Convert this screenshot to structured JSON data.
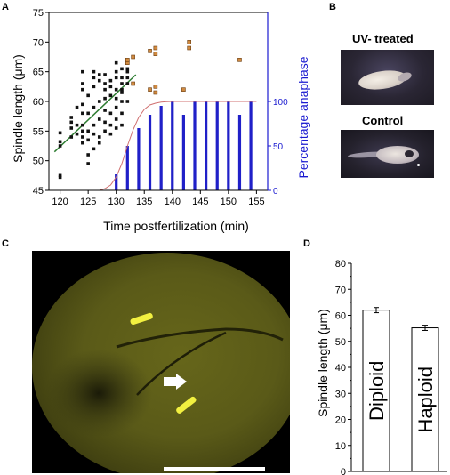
{
  "panels": {
    "a": "A",
    "b": "B",
    "c": "C",
    "d": "D"
  },
  "panel_b": {
    "uv_title": "UV- treated",
    "control_title": "Control"
  },
  "colors": {
    "spindle": "#111111",
    "late": "#d08a40",
    "bar": "#2020c8",
    "fit": "#2e7d32",
    "sigmoid": "#d07070",
    "right_axis": "#1a1ad0"
  },
  "chart_data": [
    {
      "type": "scatter",
      "xlabel": "Time postfertilization (min)",
      "ylabel": "Spindle length (μm)",
      "ylabel_right": "Percentage anaphase",
      "xlim": [
        118,
        157
      ],
      "ylim": [
        45,
        75
      ],
      "ylim_right": [
        0,
        200
      ],
      "xticks": [
        120,
        125,
        130,
        135,
        140,
        145,
        150,
        155
      ],
      "yticks": [
        45,
        50,
        55,
        60,
        65,
        70,
        75
      ],
      "yticks_right": [
        0,
        50,
        100
      ],
      "series": [
        {
          "marker": "square-black",
          "points": [
            [
              120,
              47.5
            ],
            [
              120,
              47.2
            ],
            [
              120,
              52.5
            ],
            [
              120,
              53.2
            ],
            [
              120,
              54.7
            ],
            [
              122,
              54.0
            ],
            [
              122,
              55.5
            ],
            [
              122,
              56.5
            ],
            [
              122,
              57.3
            ],
            [
              123,
              54.5
            ],
            [
              123,
              56.0
            ],
            [
              123,
              59.0
            ],
            [
              124,
              53.0
            ],
            [
              124,
              54.0
            ],
            [
              124,
              55.0
            ],
            [
              124,
              56.0
            ],
            [
              124,
              58.0
            ],
            [
              124,
              59.5
            ],
            [
              124,
              62.0
            ],
            [
              124,
              63.0
            ],
            [
              124,
              65.0
            ],
            [
              125,
              49.5
            ],
            [
              125,
              51.0
            ],
            [
              125,
              53.5
            ],
            [
              125,
              55.0
            ],
            [
              125,
              58.0
            ],
            [
              125,
              61.0
            ],
            [
              126,
              52.0
            ],
            [
              126,
              54.5
            ],
            [
              126,
              56.0
            ],
            [
              126,
              59.0
            ],
            [
              126,
              62.5
            ],
            [
              126,
              64.0
            ],
            [
              126,
              65.0
            ],
            [
              127,
              53.0
            ],
            [
              127,
              54.0
            ],
            [
              127,
              57.0
            ],
            [
              127,
              60.0
            ],
            [
              127,
              63.5
            ],
            [
              127,
              64.5
            ],
            [
              128,
              55.0
            ],
            [
              128,
              56.5
            ],
            [
              128,
              58.5
            ],
            [
              128,
              60.5
            ],
            [
              128,
              62.0
            ],
            [
              128,
              63.0
            ],
            [
              128,
              64.5
            ],
            [
              129,
              54.5
            ],
            [
              129,
              56.0
            ],
            [
              129,
              58.0
            ],
            [
              129,
              61.0
            ],
            [
              129,
              62.5
            ],
            [
              129,
              63.5
            ],
            [
              130,
              55.5
            ],
            [
              130,
              57.0
            ],
            [
              130,
              59.0
            ],
            [
              130,
              60.5
            ],
            [
              130,
              62.0
            ],
            [
              130,
              64.0
            ],
            [
              130,
              65.0
            ],
            [
              130,
              66.5
            ],
            [
              131,
              56.0
            ],
            [
              131,
              58.0
            ],
            [
              131,
              60.0
            ],
            [
              131,
              61.5
            ],
            [
              131,
              62.0
            ],
            [
              131,
              63.0
            ],
            [
              131,
              64.0
            ],
            [
              131,
              65.5
            ],
            [
              132,
              60.0
            ],
            [
              132,
              63.0
            ],
            [
              132,
              64.0
            ],
            [
              132,
              65.0
            ],
            [
              132,
              65.5
            ]
          ]
        },
        {
          "marker": "square-orange",
          "points": [
            [
              132,
              66.5
            ],
            [
              132,
              67.0
            ],
            [
              133,
              67.5
            ],
            [
              133,
              63.0
            ],
            [
              136,
              68.5
            ],
            [
              136,
              62.0
            ],
            [
              137,
              69.0
            ],
            [
              137,
              68.0
            ],
            [
              137,
              62.5
            ],
            [
              137,
              61.5
            ],
            [
              142,
              62.0
            ],
            [
              143,
              70.0
            ],
            [
              143,
              69.0
            ],
            [
              152,
              67.0
            ]
          ]
        }
      ],
      "fit_line": {
        "x": [
          119,
          133.5
        ],
        "y": [
          51.5,
          64.5
        ]
      },
      "bars": {
        "axis": "right",
        "x": [
          130,
          132,
          134,
          136,
          138,
          140,
          142,
          144,
          146,
          148,
          150,
          152,
          154
        ],
        "values": [
          18,
          50,
          70,
          85,
          95,
          100,
          85,
          100,
          100,
          100,
          100,
          85,
          100
        ]
      },
      "sigmoid": {
        "axis": "right",
        "x": [
          127,
          128,
          129,
          130,
          131,
          132,
          133,
          134,
          135,
          136,
          137,
          138,
          139,
          140,
          142,
          144,
          148,
          152,
          155
        ],
        "values": [
          0,
          2,
          6,
          15,
          30,
          50,
          68,
          82,
          91,
          96,
          98,
          99.3,
          99.8,
          100,
          100,
          100,
          100,
          100,
          100
        ]
      }
    },
    {
      "type": "bar",
      "categories": [
        "Diploid",
        "Haploid"
      ],
      "values": [
        62,
        55.2
      ],
      "errors": [
        1.0,
        1.0
      ],
      "ylabel": "Spindle length (μm)",
      "ylim": [
        0,
        80
      ],
      "yticks": [
        0,
        10,
        20,
        30,
        40,
        50,
        60,
        70,
        80
      ]
    }
  ]
}
